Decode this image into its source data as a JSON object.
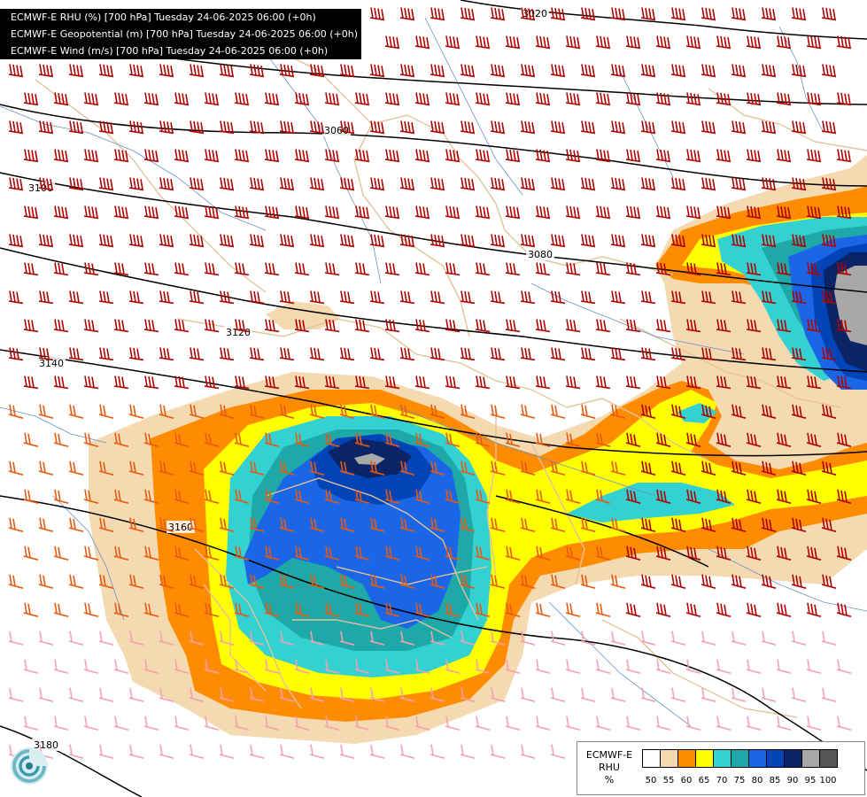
{
  "header": {
    "line1": "ECMWF-E RHU (%) [700 hPa] Tuesday 24-06-2025 06:00 (+0h)",
    "line2": "ECMWF-E Geopotential (m) [700 hPa] Tuesday 24-06-2025 06:00 (+0h)",
    "line3": "ECMWF-E Wind (m/s) [700 hPa] Tuesday 24-06-2025 06:00 (+0h)"
  },
  "contours": {
    "labels": [
      "3020",
      "3060",
      "3080",
      "3100",
      "3120",
      "3140",
      "3160",
      "3180"
    ]
  },
  "legend": {
    "model": "ECMWF-E",
    "variable": "RHU",
    "unit": "%",
    "ticks": [
      "50",
      "55",
      "60",
      "65",
      "70",
      "75",
      "80",
      "85",
      "90",
      "95",
      "100"
    ],
    "colors": [
      "#ffffff",
      "#f5d9b0",
      "#ff8c00",
      "#ffff00",
      "#33d1d1",
      "#1fa8a8",
      "#1a66e6",
      "#0044b8",
      "#0a2466",
      "#a8a8a8",
      "#555555"
    ]
  },
  "colors": {
    "barb_north": "#b00000",
    "barb_mid": "#e85a10",
    "barb_south": "#f4a0b0",
    "contour": "#000000",
    "border": "#e0c39a",
    "river": "#6a8ec8"
  },
  "logo": {
    "icon": "ecmwf-swirl-logo"
  }
}
